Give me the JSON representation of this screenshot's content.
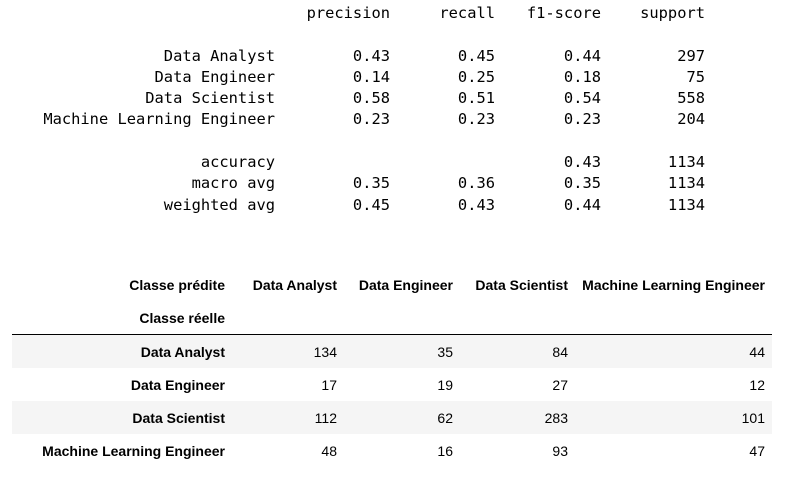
{
  "report": {
    "headers": {
      "precision": "precision",
      "recall": "recall",
      "f1": "f1-score",
      "support": "support"
    },
    "rows": [
      {
        "label": "Data Analyst",
        "precision": "0.43",
        "recall": "0.45",
        "f1": "0.44",
        "support": "297"
      },
      {
        "label": "Data Engineer",
        "precision": "0.14",
        "recall": "0.25",
        "f1": "0.18",
        "support": "75"
      },
      {
        "label": "Data Scientist",
        "precision": "0.58",
        "recall": "0.51",
        "f1": "0.54",
        "support": "558"
      },
      {
        "label": "Machine Learning Engineer",
        "precision": "0.23",
        "recall": "0.23",
        "f1": "0.23",
        "support": "204"
      }
    ],
    "summary": [
      {
        "label": "accuracy",
        "precision": "",
        "recall": "",
        "f1": "0.43",
        "support": "1134"
      },
      {
        "label": "macro avg",
        "precision": "0.35",
        "recall": "0.36",
        "f1": "0.35",
        "support": "1134"
      },
      {
        "label": "weighted avg",
        "precision": "0.45",
        "recall": "0.43",
        "f1": "0.44",
        "support": "1134"
      }
    ]
  },
  "matrix": {
    "columns_name": "Classe prédite",
    "index_name": "Classe réelle",
    "columns": [
      "Data Analyst",
      "Data Engineer",
      "Data Scientist",
      "Machine Learning Engineer"
    ],
    "rows": [
      {
        "label": "Data Analyst",
        "values": [
          "134",
          "35",
          "84",
          "44"
        ]
      },
      {
        "label": "Data Engineer",
        "values": [
          "17",
          "19",
          "27",
          "12"
        ]
      },
      {
        "label": "Data Scientist",
        "values": [
          "112",
          "62",
          "283",
          "101"
        ]
      },
      {
        "label": "Machine Learning Engineer",
        "values": [
          "48",
          "16",
          "93",
          "47"
        ]
      }
    ]
  }
}
